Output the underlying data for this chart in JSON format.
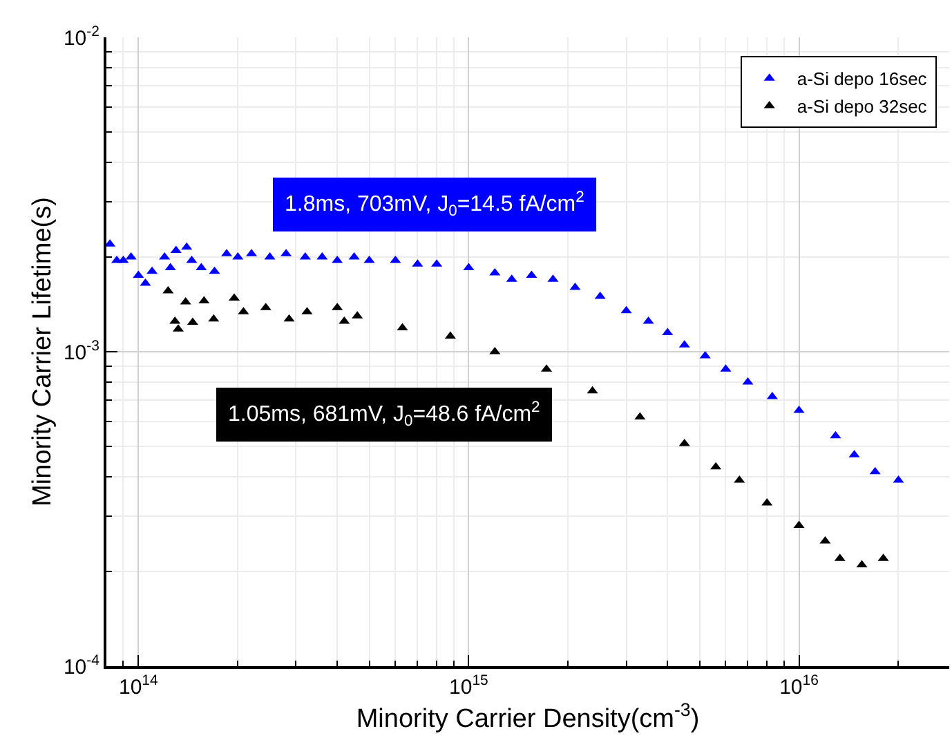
{
  "chart_data": {
    "type": "scatter",
    "xlabel": "Minority Carrier Density(cm$^{-3}$)",
    "ylabel": "Minority Carrier Lifetime(s)",
    "log": "xy",
    "grid": true,
    "legend": "top right",
    "marker": "triangle",
    "xlim": [
      80000000000000.0,
      2.85e+16
    ],
    "ylim": [
      0.0001,
      0.01
    ],
    "xticks": [
      {
        "value": 100000000000000.0,
        "label": "10$^{14}$"
      },
      {
        "value": 1000000000000000.0,
        "label": "10$^{15}$"
      },
      {
        "value": 1e+16,
        "label": "10$^{16}$"
      }
    ],
    "yticks": [
      {
        "value": 0.0001,
        "label": "10$^{-4}$"
      },
      {
        "value": 0.001,
        "label": "10$^{-3}$"
      },
      {
        "value": 0.01,
        "label": "10$^{-2}$"
      }
    ],
    "annotations": [
      "1.8ms, 703mV, J$_{0}$=14.5 fA/cm$^{2}$",
      "1.05ms, 681mV, J$_{0}$=48.6 fA/cm$^{2}$"
    ],
    "series": [
      {
        "name": "a-Si depo 16sec",
        "color": "#0000ff",
        "x": [
          82000000000000.0,
          86000000000000.0,
          90000000000000.0,
          95000000000000.0,
          100000000000000.0,
          105000000000000.0,
          110000000000000.0,
          120000000000000.0,
          125000000000000.0,
          130000000000000.0,
          140000000000000.0,
          145000000000000.0,
          155000000000000.0,
          170000000000000.0,
          185000000000000.0,
          200000000000000.0,
          220000000000000.0,
          250000000000000.0,
          280000000000000.0,
          320000000000000.0,
          360000000000000.0,
          400000000000000.0,
          450000000000000.0,
          500000000000000.0,
          600000000000000.0,
          700000000000000.0,
          800000000000000.0,
          1000000000000000.0,
          1200000000000000.0,
          1350000000000000.0,
          1550000000000000.0,
          1800000000000000.0,
          2100000000000000.0,
          2500000000000000.0,
          3000000000000000.0,
          3500000000000000.0,
          4000000000000000.0,
          4500000000000000.0,
          5200000000000000.0,
          6000000000000000.0,
          7000000000000000.0,
          8300000000000000.0,
          1e+16,
          1.29e+16,
          1.47e+16,
          1.7e+16,
          2e+16
        ],
        "values": [
          0.0022,
          0.00195,
          0.00195,
          0.002,
          0.00175,
          0.00165,
          0.0018,
          0.002,
          0.00185,
          0.0021,
          0.00215,
          0.00195,
          0.00185,
          0.0018,
          0.00205,
          0.002,
          0.00205,
          0.002,
          0.00205,
          0.002,
          0.002,
          0.00195,
          0.002,
          0.00195,
          0.00195,
          0.0019,
          0.0019,
          0.00185,
          0.00178,
          0.0017,
          0.00175,
          0.0017,
          0.0016,
          0.0015,
          0.00135,
          0.00125,
          0.00115,
          0.00105,
          0.00097,
          0.00088,
          0.0008,
          0.00072,
          0.00065,
          0.00054,
          0.00047,
          0.000415,
          0.00039
        ]
      },
      {
        "name": "a-Si depo 32sec",
        "color": "#000000",
        "x": [
          123000000000000.0,
          129000000000000.0,
          132000000000000.0,
          139000000000000.0,
          146000000000000.0,
          158000000000000.0,
          169000000000000.0,
          195000000000000.0,
          208000000000000.0,
          243000000000000.0,
          286000000000000.0,
          324000000000000.0,
          400000000000000.0,
          420000000000000.0,
          460000000000000.0,
          630000000000000.0,
          880000000000000.0,
          1200000000000000.0,
          1720000000000000.0,
          2370000000000000.0,
          3300000000000000.0,
          4500000000000000.0,
          5600000000000000.0,
          6600000000000000.0,
          8000000000000000.0,
          1e+16,
          1.2e+16,
          1.33e+16,
          1.55e+16,
          1.8e+16
        ],
        "values": [
          0.00156,
          0.00125,
          0.00118,
          0.00144,
          0.00124,
          0.00145,
          0.00127,
          0.00148,
          0.00134,
          0.00138,
          0.00127,
          0.00134,
          0.00138,
          0.00125,
          0.0013,
          0.00119,
          0.00112,
          0.001,
          0.00088,
          0.00075,
          0.00062,
          0.00051,
          0.00043,
          0.00039,
          0.00033,
          0.00028,
          0.00025,
          0.00022,
          0.00021,
          0.00022
        ]
      }
    ]
  }
}
